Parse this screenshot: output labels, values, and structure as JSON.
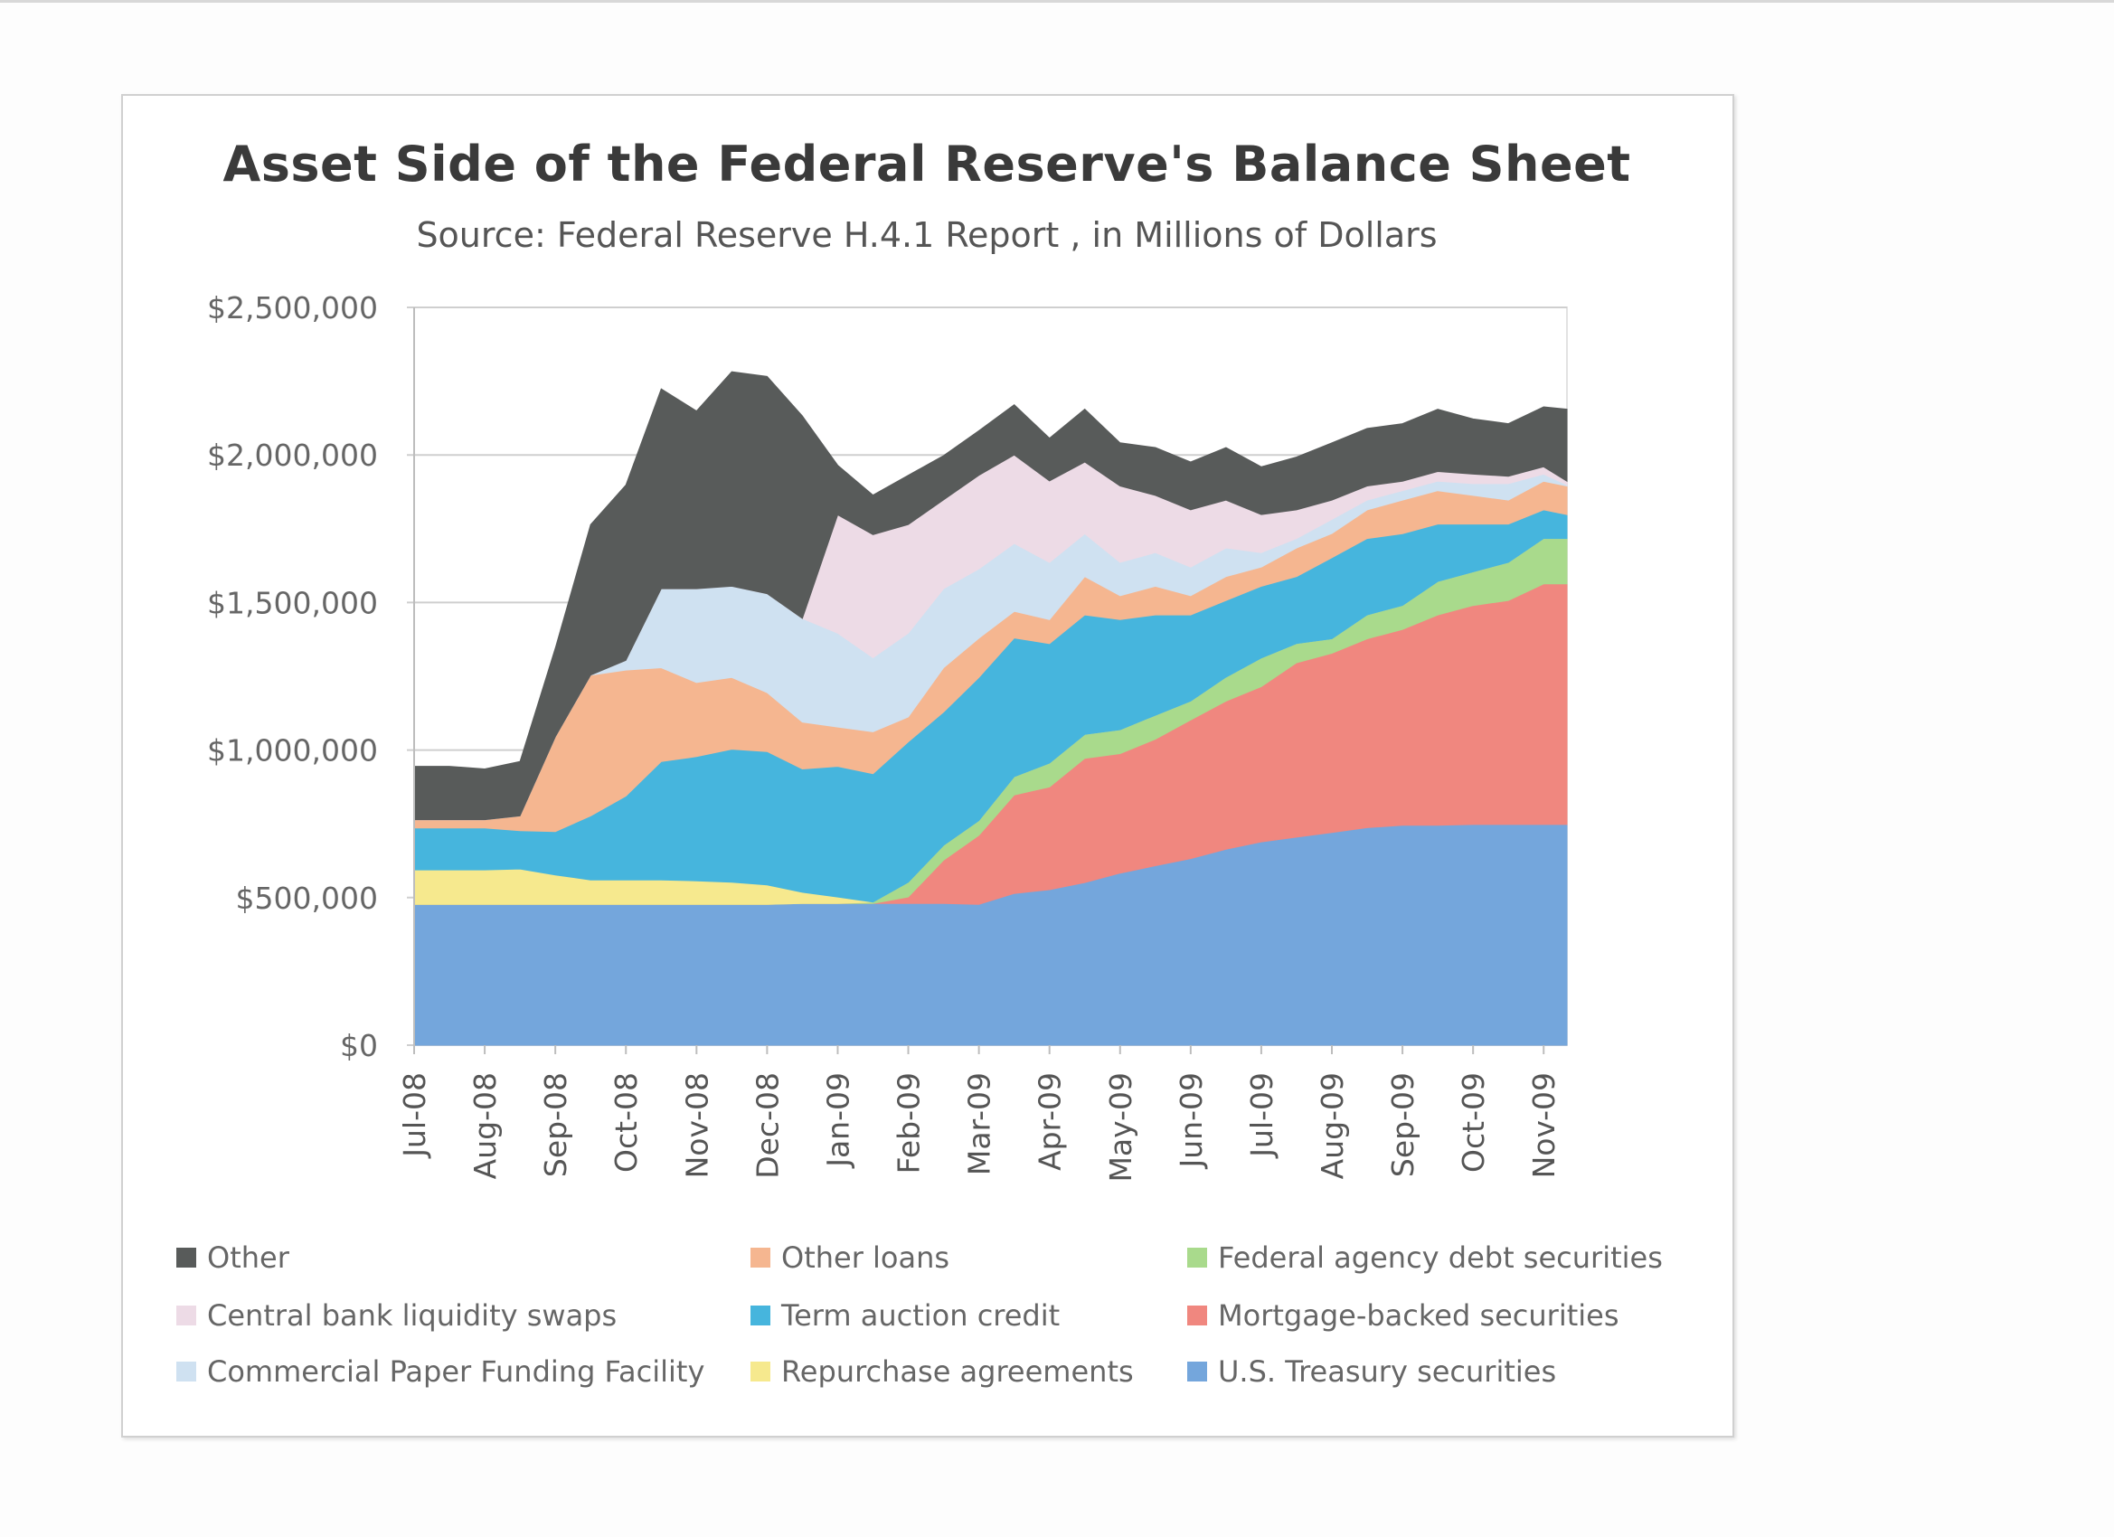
{
  "chart_data": {
    "type": "area",
    "stacked": true,
    "title": "Asset  Side of the Federal Reserve's Balance Sheet",
    "subtitle": "Source: Federal Reserve H.4.1 Report , in Millions of Dollars",
    "xlabel": "",
    "ylabel": "",
    "ylim": [
      0,
      2500000
    ],
    "yticks": [
      0,
      500000,
      1000000,
      1500000,
      2000000,
      2500000
    ],
    "ytick_labels": [
      "$0",
      "$500,000",
      "$1,000,000",
      "$1,500,000",
      "$2,000,000",
      "$2,500,000"
    ],
    "xtick_labels": [
      "Jul-08",
      "Aug-08",
      "Sep-08",
      "Oct-08",
      "Nov-08",
      "Dec-08",
      "Jan-09",
      "Feb-09",
      "Mar-09",
      "Apr-09",
      "May-09",
      "Jun-09",
      "Jul-09",
      "Aug-09",
      "Sep-09",
      "Oct-09",
      "Nov-09"
    ],
    "x_unit": "months since Jul-08",
    "x": [
      0,
      0.5,
      1,
      1.5,
      2,
      2.5,
      3,
      3.5,
      4,
      4.5,
      5,
      5.5,
      6,
      6.5,
      7,
      7.5,
      8,
      8.5,
      9,
      9.5,
      10,
      10.5,
      11,
      11.5,
      12,
      12.5,
      13,
      13.5,
      14,
      14.5,
      15,
      15.5,
      16,
      16.33
    ],
    "grid": "horizontal",
    "legend_position": "bottom",
    "series": [
      {
        "name": "U.S. Treasury securities",
        "color": "#74a6dc",
        "values": [
          477000,
          477000,
          477000,
          477000,
          477000,
          477000,
          477000,
          477000,
          477000,
          477000,
          477000,
          480000,
          480000,
          480000,
          480000,
          480000,
          477000,
          514000,
          527000,
          551000,
          583000,
          608000,
          632000,
          664000,
          689000,
          705000,
          721000,
          737000,
          745000,
          745000,
          748000,
          748000,
          748000,
          748000
        ]
      },
      {
        "name": "Mortgage-backed securities",
        "color": "#f0877f",
        "values": [
          0,
          0,
          0,
          0,
          0,
          0,
          0,
          0,
          0,
          0,
          0,
          0,
          0,
          0,
          22000,
          147000,
          234000,
          334000,
          348000,
          421000,
          405000,
          429000,
          470000,
          502000,
          526000,
          591000,
          607000,
          640000,
          664000,
          713000,
          742000,
          759000,
          815000,
          815000
        ]
      },
      {
        "name": "Federal agency debt securities",
        "color": "#a9da8c",
        "values": [
          0,
          0,
          0,
          0,
          0,
          0,
          0,
          0,
          0,
          0,
          0,
          0,
          0,
          5000,
          50000,
          50000,
          50000,
          62000,
          81000,
          81000,
          81000,
          81000,
          64000,
          81000,
          97000,
          65000,
          49000,
          81000,
          81000,
          113000,
          114000,
          129000,
          154000,
          154000
        ]
      },
      {
        "name": "Repurchase agreements",
        "color": "#f6e98e",
        "values": [
          117000,
          117000,
          117000,
          120000,
          100000,
          83000,
          83000,
          83000,
          80000,
          75000,
          66000,
          38000,
          22000,
          0,
          0,
          0,
          0,
          0,
          0,
          0,
          0,
          0,
          0,
          0,
          0,
          0,
          0,
          0,
          0,
          0,
          0,
          0,
          0,
          0
        ]
      },
      {
        "name": "Term auction credit",
        "color": "#46b5dd",
        "values": [
          142000,
          142000,
          142000,
          130000,
          147000,
          217000,
          284000,
          401000,
          421000,
          451000,
          452000,
          418000,
          443000,
          435000,
          476000,
          452000,
          485000,
          470000,
          405000,
          405000,
          373000,
          340000,
          292000,
          260000,
          243000,
          227000,
          275000,
          259000,
          243000,
          195000,
          162000,
          130000,
          97000,
          81000
        ]
      },
      {
        "name": "Other loans",
        "color": "#f5b690",
        "values": [
          28000,
          28000,
          28000,
          50000,
          321000,
          477000,
          427000,
          318000,
          251000,
          243000,
          200000,
          159000,
          133000,
          142000,
          84000,
          150000,
          133000,
          90000,
          81000,
          130000,
          81000,
          97000,
          65000,
          81000,
          65000,
          97000,
          82000,
          97000,
          114000,
          113000,
          97000,
          81000,
          97000,
          97000
        ]
      },
      {
        "name": "Commercial Paper Funding Facility",
        "color": "#cfe1f1",
        "values": [
          0,
          0,
          0,
          0,
          0,
          0,
          33000,
          268000,
          318000,
          309000,
          335000,
          351000,
          318000,
          251000,
          284000,
          268000,
          235000,
          230000,
          194000,
          145000,
          113000,
          114000,
          97000,
          97000,
          49000,
          32000,
          48000,
          33000,
          32000,
          32000,
          40000,
          56000,
          24000,
          4000
        ]
      },
      {
        "name": "Central bank liquidity swaps",
        "color": "#eddbe6",
        "values": [
          0,
          0,
          0,
          0,
          0,
          0,
          0,
          0,
          0,
          0,
          0,
          0,
          401000,
          417000,
          368000,
          301000,
          317000,
          300000,
          276000,
          243000,
          259000,
          194000,
          194000,
          162000,
          129000,
          97000,
          65000,
          48000,
          32000,
          33000,
          32000,
          25000,
          25000,
          12000
        ]
      },
      {
        "name": "Other",
        "color": "#585b5a",
        "values": [
          181000,
          181000,
          172000,
          184000,
          301000,
          510000,
          594000,
          677000,
          602000,
          727000,
          736000,
          686000,
          168000,
          134000,
          167000,
          150000,
          151000,
          170000,
          145000,
          179000,
          146000,
          162000,
          162000,
          178000,
          162000,
          179000,
          194000,
          195000,
          195000,
          211000,
          187000,
          178000,
          203000,
          244000
        ]
      }
    ],
    "legend": [
      {
        "label": "Other",
        "color": "#585b5a"
      },
      {
        "label": "Central bank liquidity swaps",
        "color": "#eddbe6"
      },
      {
        "label": "Commercial Paper Funding Facility",
        "color": "#cfe1f1"
      },
      {
        "label": "Other loans",
        "color": "#f5b690"
      },
      {
        "label": "Term auction credit",
        "color": "#46b5dd"
      },
      {
        "label": "Repurchase agreements",
        "color": "#f6e98e"
      },
      {
        "label": "Federal agency debt securities",
        "color": "#a9da8c"
      },
      {
        "label": "Mortgage-backed securities",
        "color": "#f0877f"
      },
      {
        "label": "U.S. Treasury securities",
        "color": "#74a6dc"
      }
    ]
  }
}
